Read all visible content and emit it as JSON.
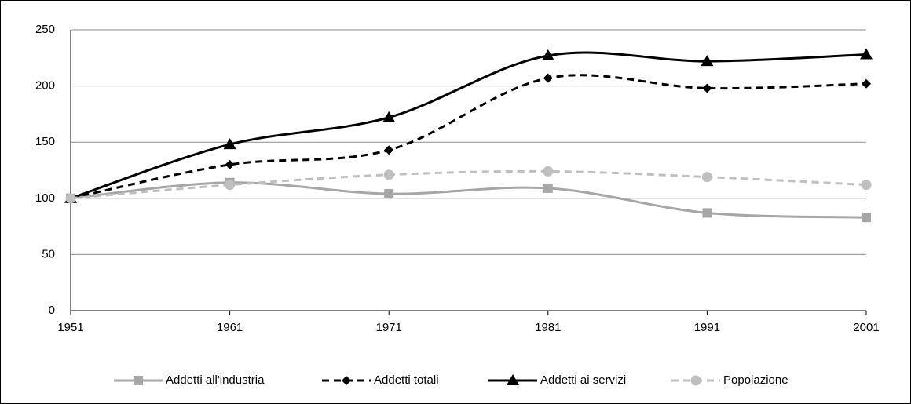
{
  "chart_data": {
    "type": "line",
    "x": [
      1951,
      1961,
      1971,
      1981,
      1991,
      2001
    ],
    "xlim": [
      1951,
      2001
    ],
    "xticks": [
      1951,
      1961,
      1971,
      1981,
      1991,
      2001
    ],
    "ylim": [
      0,
      250
    ],
    "yticks": [
      0,
      50,
      100,
      150,
      200,
      250
    ],
    "grid": true,
    "smooth": true,
    "legend": "bottom",
    "series": [
      {
        "name": "Addetti all'industria",
        "color": "#a6a6a6",
        "dash": false,
        "marker": "square",
        "values": [
          100,
          114,
          104,
          109,
          87,
          83
        ]
      },
      {
        "name": "Addetti totali",
        "color": "#000000",
        "dash": true,
        "marker": "diamond",
        "values": [
          100,
          130,
          143,
          207,
          198,
          202
        ]
      },
      {
        "name": "Addetti ai servizi",
        "color": "#000000",
        "dash": false,
        "marker": "triangle",
        "values": [
          100,
          148,
          172,
          227,
          222,
          228
        ]
      },
      {
        "name": "Popolazione",
        "color": "#bfbfbf",
        "dash": true,
        "marker": "circle",
        "values": [
          100,
          112,
          121,
          124,
          119,
          112
        ]
      }
    ]
  }
}
